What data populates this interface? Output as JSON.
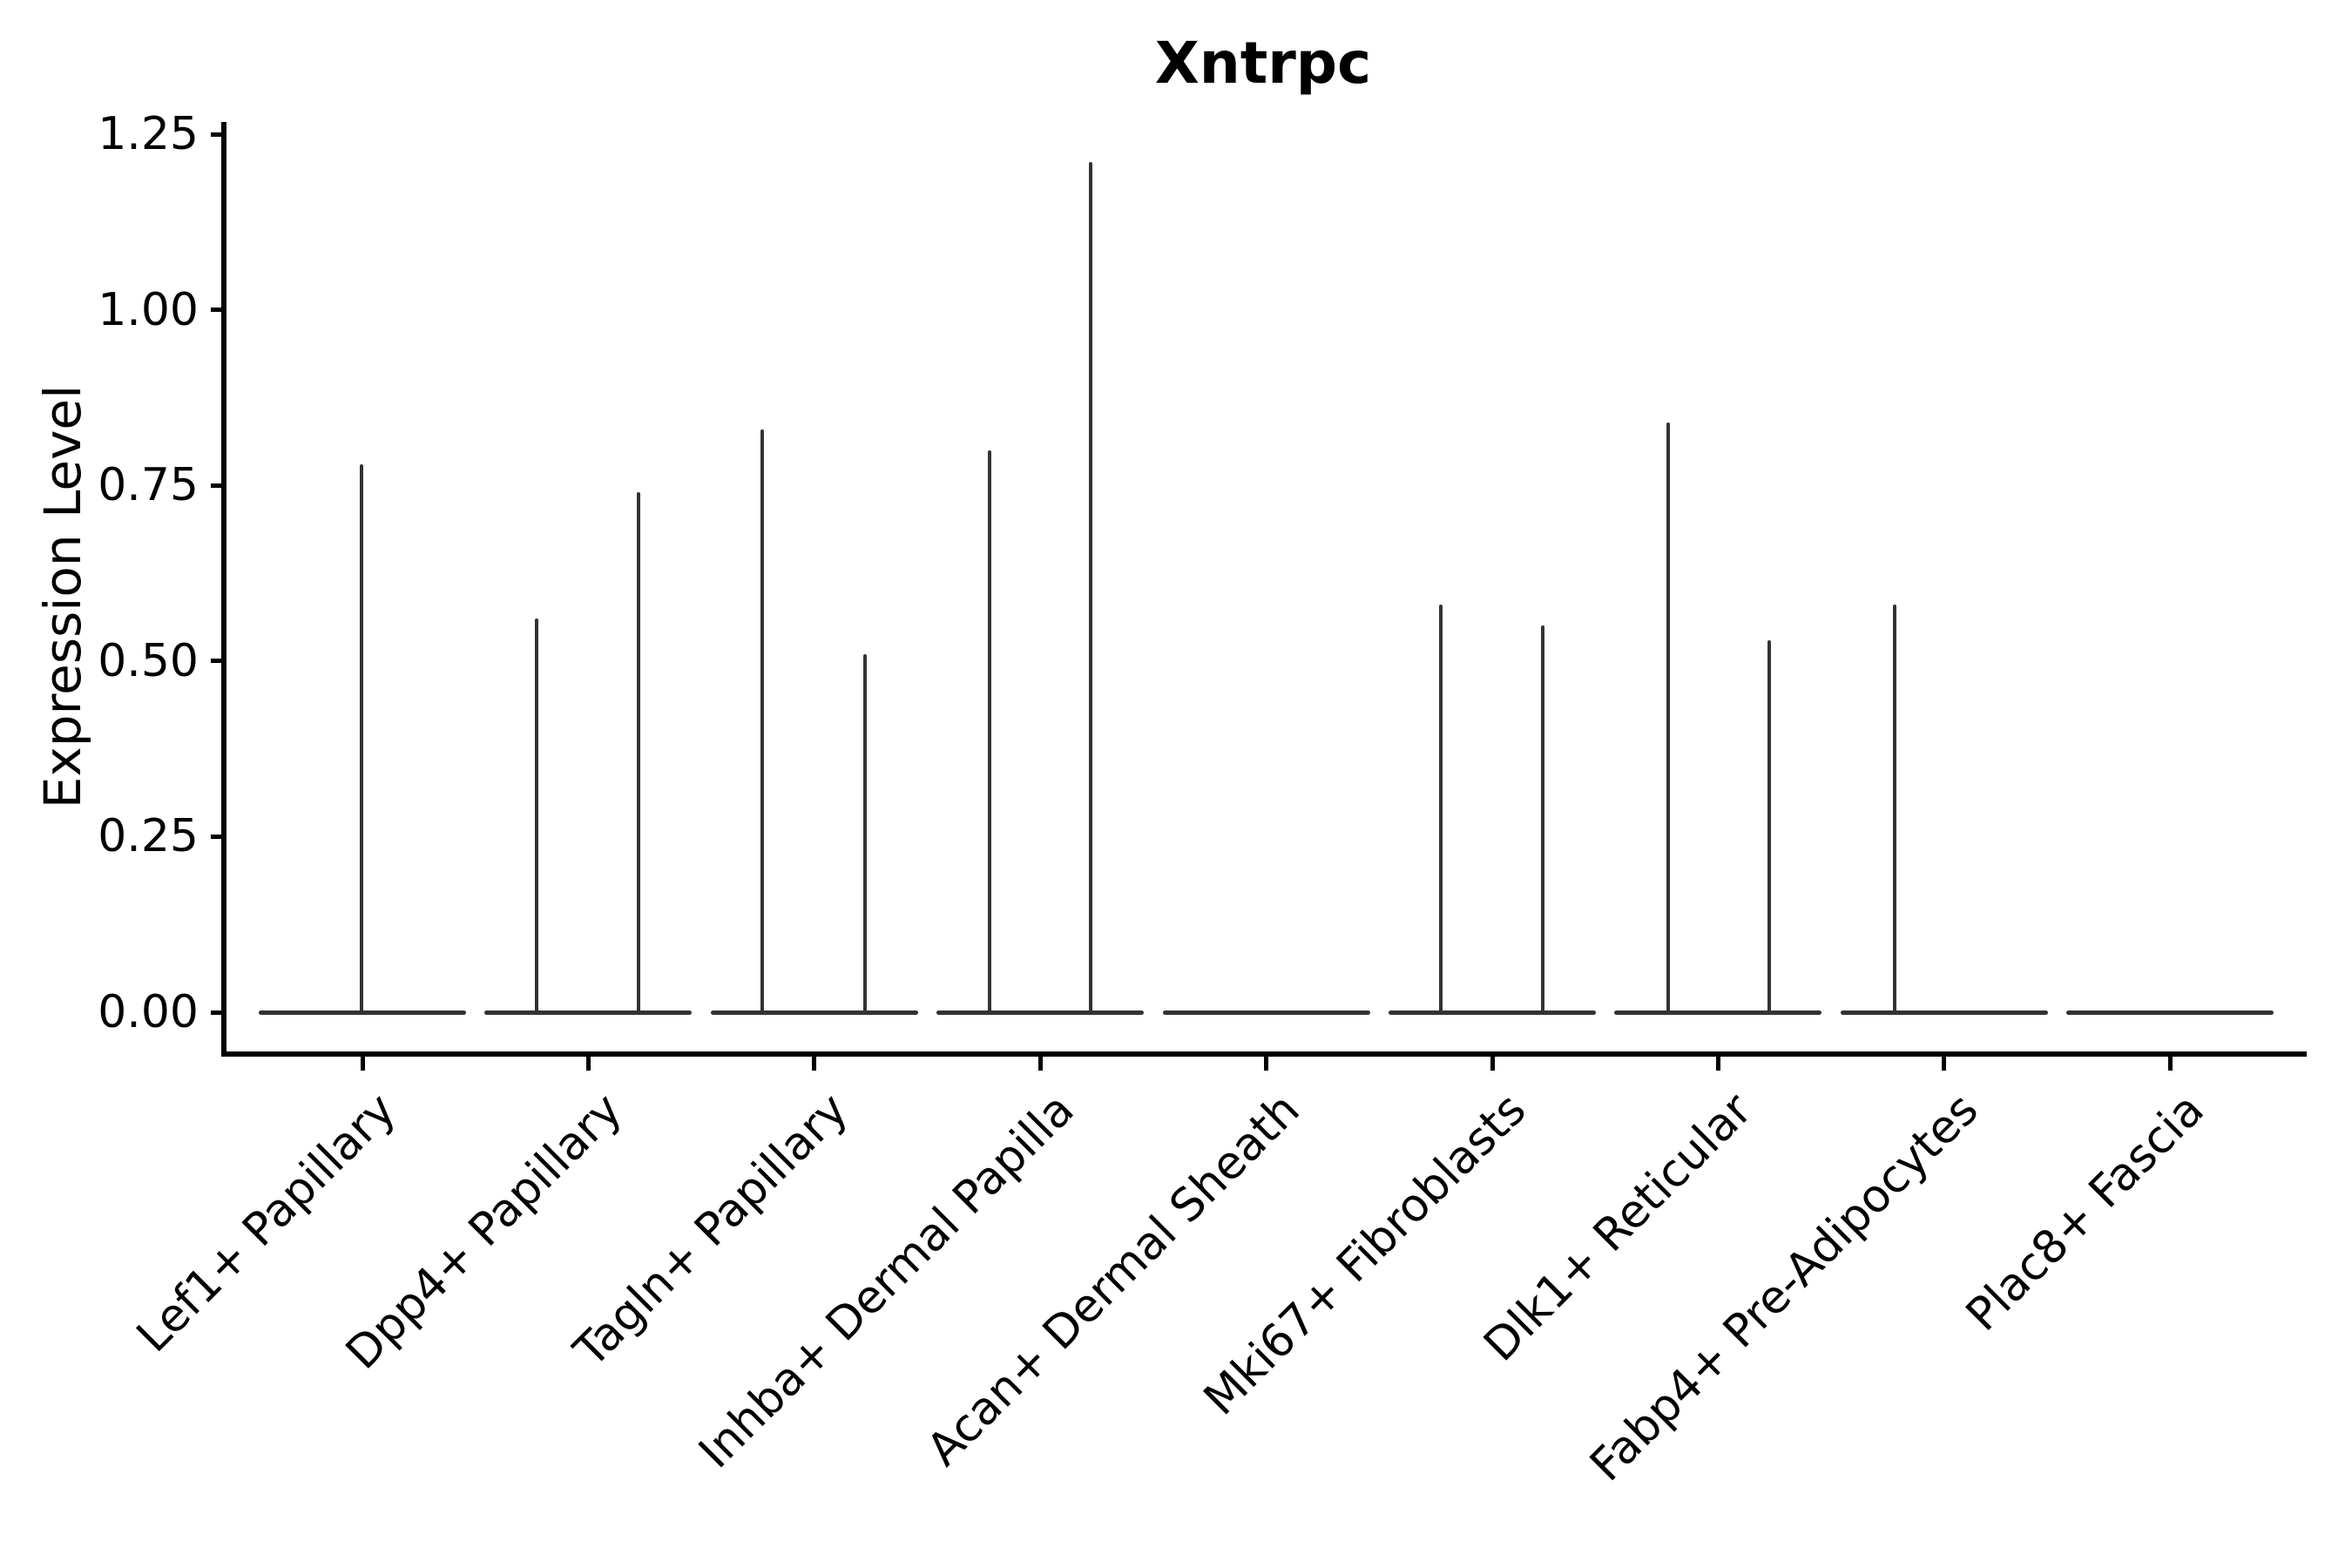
{
  "title": "Xntrpc",
  "y_axis": {
    "label": "Expression Level",
    "tick_labels": [
      "0.00",
      "0.25",
      "0.50",
      "0.75",
      "1.00",
      "1.25"
    ]
  },
  "x_axis": {
    "tick_labels": [
      "Lef1+ Papillary",
      "Dpp4+ Papillary",
      "Tagln+ Papillary",
      "Inhba+ Dermal Papilla",
      "Acan+ Dermal Sheath",
      "Mki67+ Fibroblasts",
      "Dlk1+ Reticular",
      "Fabp4+ Pre-Adipocytes",
      "Plac8+ Fascia"
    ]
  },
  "colors": {
    "violin_line": "#333333",
    "axis": "#000000",
    "text": "#000000",
    "background": "#ffffff"
  },
  "chart_data": {
    "type": "violin",
    "title": "Xntrpc",
    "xlabel": "",
    "ylabel": "Expression Level",
    "ylim": [
      -0.06,
      1.27
    ],
    "yticks": [
      0.0,
      0.25,
      0.5,
      0.75,
      1.0,
      1.25
    ],
    "grid": false,
    "legend_position": "none",
    "categories": [
      "Lef1+ Papillary",
      "Dpp4+ Papillary",
      "Tagln+ Papillary",
      "Inhba+ Dermal Papilla",
      "Acan+ Dermal Sheath",
      "Mki67+ Fibroblasts",
      "Dlk1+ Reticular",
      "Fabp4+ Pre-Adipocytes",
      "Plac8+ Fascia"
    ],
    "description": "Collapsed violins: flat line at expression 0 for every cell type, with thin vertical spikes marking rare non-zero expressing cells.",
    "series": [
      {
        "name": "Lef1+ Papillary",
        "baseline_value": 0,
        "spikes": [
          {
            "x_offset": -1,
            "value": 0.78
          }
        ]
      },
      {
        "name": "Dpp4+ Papillary",
        "baseline_value": 0,
        "spikes": [
          {
            "x_offset": -59,
            "value": 0.56
          },
          {
            "x_offset": 58,
            "value": 0.74
          }
        ]
      },
      {
        "name": "Tagln+ Papillary",
        "baseline_value": 0,
        "spikes": [
          {
            "x_offset": -60,
            "value": 0.83
          },
          {
            "x_offset": 58,
            "value": 0.51
          }
        ]
      },
      {
        "name": "Inhba+ Dermal Papilla",
        "baseline_value": 0,
        "spikes": [
          {
            "x_offset": -58,
            "value": 0.8
          },
          {
            "x_offset": 58,
            "value": 1.21
          }
        ]
      },
      {
        "name": "Acan+ Dermal Sheath",
        "baseline_value": 0,
        "spikes": []
      },
      {
        "name": "Mki67+ Fibroblasts",
        "baseline_value": 0,
        "spikes": [
          {
            "x_offset": -59,
            "value": 0.58
          },
          {
            "x_offset": 58,
            "value": 0.55
          }
        ]
      },
      {
        "name": "Dlk1+ Reticular",
        "baseline_value": 0,
        "spikes": [
          {
            "x_offset": -57,
            "value": 0.84
          },
          {
            "x_offset": 59,
            "value": 0.53
          }
        ]
      },
      {
        "name": "Fabp4+ Pre-Adipocytes",
        "baseline_value": 0,
        "spikes": [
          {
            "x_offset": -57,
            "value": 0.58
          }
        ]
      },
      {
        "name": "Plac8+ Fascia",
        "baseline_value": 0,
        "spikes": []
      }
    ]
  }
}
